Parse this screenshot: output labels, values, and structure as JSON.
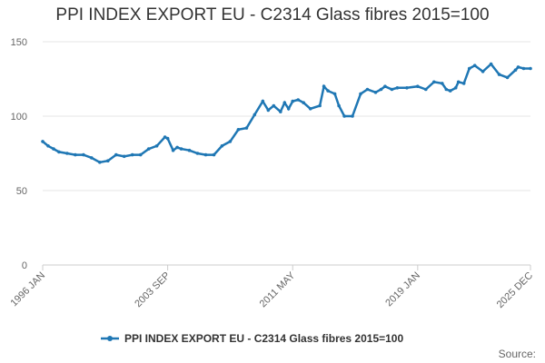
{
  "chart_data": {
    "type": "line",
    "title": "PPI INDEX EXPORT EU - C2314 Glass fibres 2015=100",
    "xlabel": "",
    "ylabel": "",
    "ylim": [
      0,
      150
    ],
    "yticks": [
      0,
      50,
      100,
      150
    ],
    "x_range": [
      "1996-01",
      "2025-12"
    ],
    "xticks": [
      {
        "label": "1996 JAN",
        "t": 0
      },
      {
        "label": "2003 SEP",
        "t": 92
      },
      {
        "label": "2011 MAY",
        "t": 184
      },
      {
        "label": "2019 JAN",
        "t": 276
      },
      {
        "label": "2025 DEC",
        "t": 359
      }
    ],
    "grid": true,
    "legend_position": "bottom",
    "series": [
      {
        "name": "PPI INDEX EXPORT EU - C2314 Glass fibres 2015=100",
        "color": "#1f77b4",
        "x_month_index": [
          0,
          4,
          8,
          12,
          18,
          24,
          30,
          36,
          42,
          48,
          54,
          60,
          66,
          72,
          78,
          84,
          90,
          92,
          96,
          99,
          102,
          108,
          114,
          120,
          126,
          132,
          138,
          144,
          150,
          156,
          162,
          166,
          170,
          175,
          178,
          181,
          184,
          188,
          192,
          197,
          204,
          207,
          210,
          215,
          218,
          222,
          228,
          234,
          239,
          245,
          249,
          252,
          257,
          261,
          268,
          276,
          282,
          288,
          294,
          297,
          300,
          304,
          306,
          310,
          314,
          318,
          324,
          330,
          336,
          342,
          348,
          350,
          354,
          359
        ],
        "values": [
          83,
          80,
          78,
          76,
          75,
          74,
          74,
          72,
          69,
          70,
          74,
          73,
          74,
          74,
          78,
          80,
          86,
          85,
          77,
          79,
          78,
          77,
          75,
          74,
          74,
          80,
          83,
          91,
          92,
          101,
          110,
          104,
          107,
          103,
          109,
          105,
          110,
          111,
          109,
          105,
          107,
          120,
          117,
          115,
          107,
          100,
          100,
          115,
          118,
          116,
          118,
          120,
          118,
          119,
          119,
          120,
          118,
          123,
          122,
          118,
          117,
          119,
          123,
          122,
          132,
          134,
          130,
          135,
          128,
          126,
          131,
          133,
          132,
          132
        ]
      }
    ]
  },
  "source_label": "Source:"
}
